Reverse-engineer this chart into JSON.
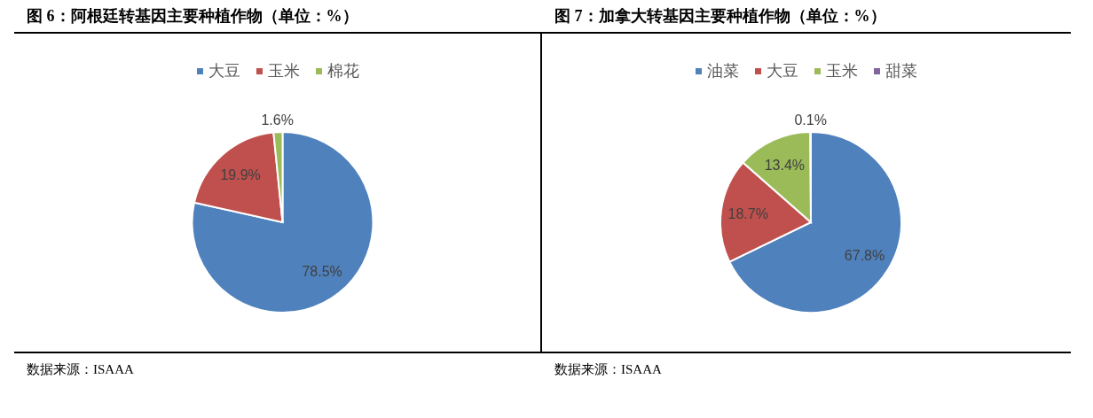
{
  "chart_data": [
    {
      "type": "pie",
      "title": "图 6：阿根廷转基因主要种植作物（单位：%）",
      "categories": [
        "大豆",
        "玉米",
        "棉花"
      ],
      "values": [
        78.5,
        19.9,
        1.6
      ],
      "colors": [
        "#4f81bd",
        "#c0504d",
        "#9bbb59"
      ],
      "value_labels": [
        "78.5%",
        "19.9%",
        "1.6%"
      ],
      "legend": "top",
      "annotations": [
        "数据来源：ISAAA"
      ]
    },
    {
      "type": "pie",
      "title": "图 7：加拿大转基因主要种植作物（单位：%）",
      "categories": [
        "油菜",
        "大豆",
        "玉米",
        "甜菜"
      ],
      "values": [
        67.8,
        18.7,
        13.4,
        0.1
      ],
      "colors": [
        "#4f81bd",
        "#c0504d",
        "#9bbb59",
        "#8064a2"
      ],
      "value_labels": [
        "67.8%",
        "18.7%",
        "13.4%",
        "0.1%"
      ],
      "legend": "top",
      "annotations": [
        "数据来源：ISAAA"
      ]
    }
  ]
}
